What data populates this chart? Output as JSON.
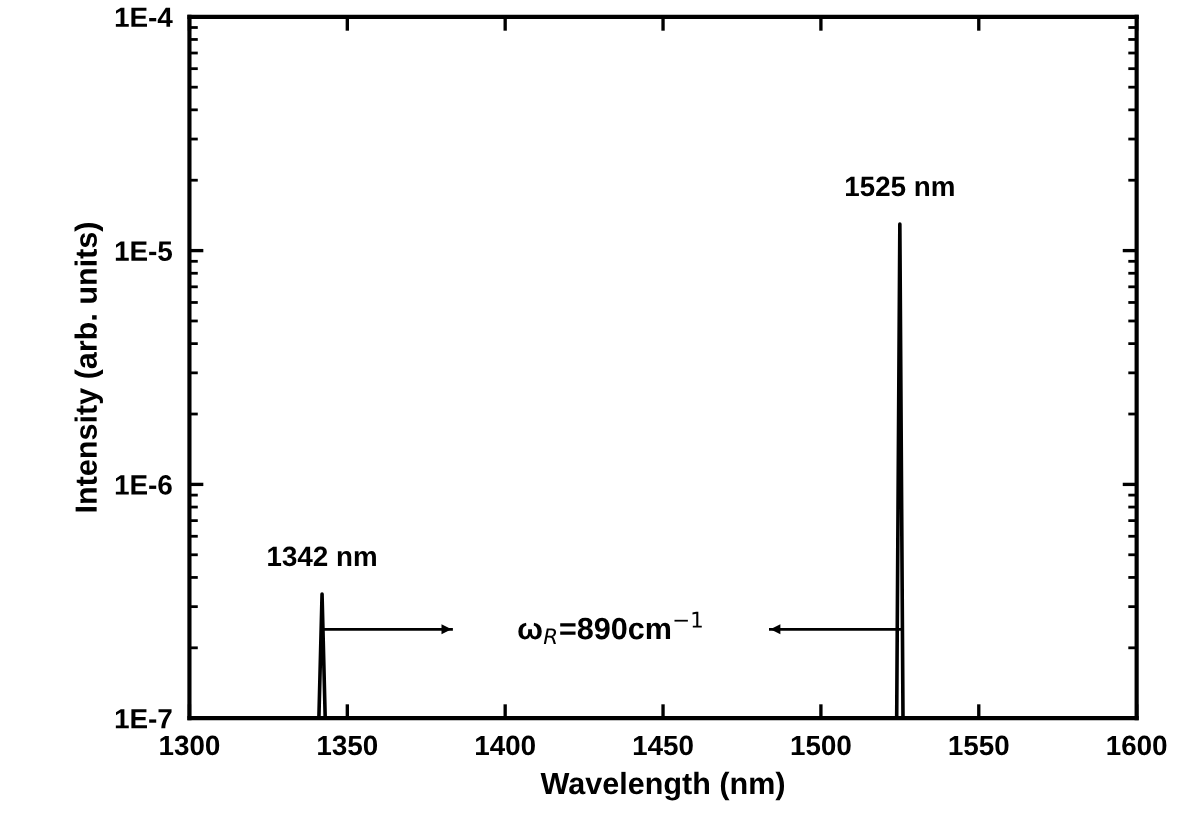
{
  "chart_data": {
    "type": "line",
    "xlabel": "Wavelength (nm)",
    "ylabel": "Intensity (arb. units)",
    "xlim": [
      1300,
      1600
    ],
    "xticks": [
      1300,
      1350,
      1400,
      1450,
      1500,
      1550,
      1600
    ],
    "ylim": [
      1e-07,
      0.0001
    ],
    "yticks": [
      {
        "value": 1e-07,
        "label": "1E-7"
      },
      {
        "value": 1e-06,
        "label": "1E-6"
      },
      {
        "value": 1e-05,
        "label": "1E-5"
      },
      {
        "value": 0.0001,
        "label": "1E-4"
      }
    ],
    "log": "y",
    "grid": false,
    "series": [
      {
        "color": "#000000",
        "x": [
          1341,
          1342,
          1343,
          1524,
          1525,
          1526
        ],
        "values": [
          1e-07,
          3.4e-07,
          1e-07,
          1e-07,
          1.3e-05,
          1e-07
        ]
      },
      {
        "color": "#000000",
        "x": [
          1342,
          1383
        ],
        "values": [
          2.4e-07,
          2.4e-07
        ]
      },
      {
        "color": "#000000",
        "x": [
          1525,
          1484
        ],
        "values": [
          2.4e-07,
          2.4e-07
        ]
      }
    ],
    "annotations": [
      {
        "text": "1342 nm",
        "x": 1342,
        "y": 3.4e-07
      },
      {
        "text": "1525 nm",
        "x": 1525,
        "y": 1.3e-05
      },
      "ω$_{R}$=890cm$^{−1}$"
    ]
  }
}
